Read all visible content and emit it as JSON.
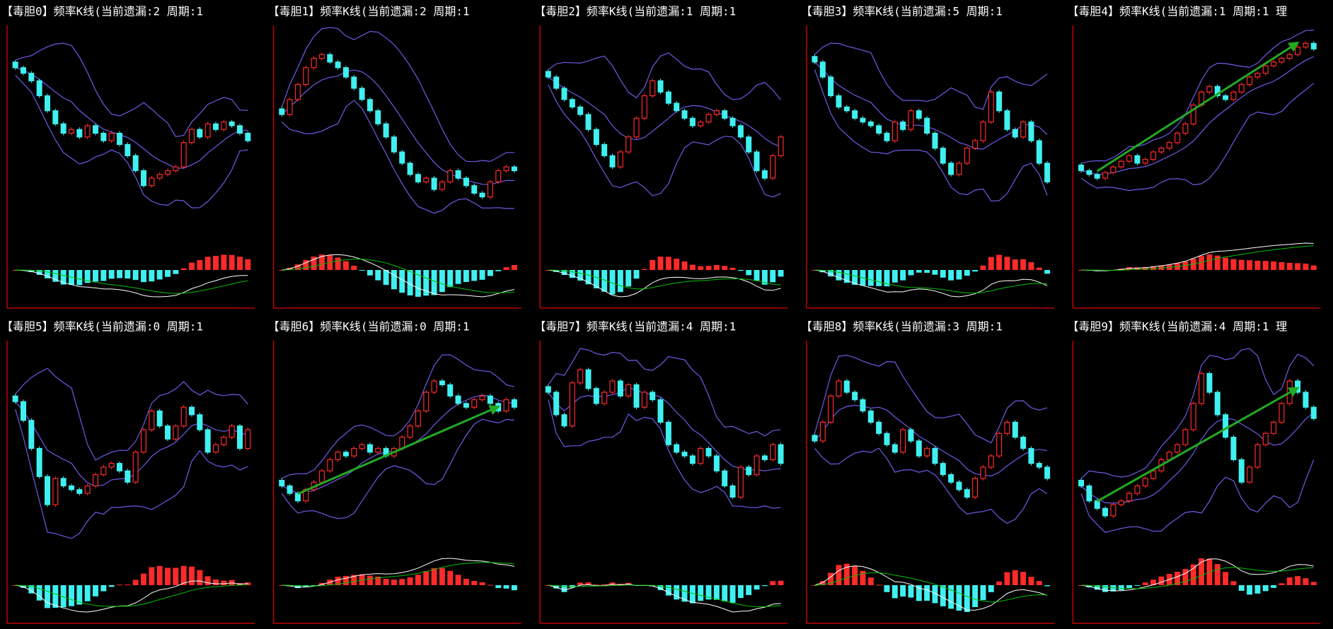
{
  "chart_data": [
    {
      "type": "candlestick",
      "title": "【毒胆0】频率K线(当前遗漏:2 周期:1",
      "trend_arrow": false,
      "values": [
        85,
        82,
        78,
        70,
        62,
        55,
        50,
        52,
        48,
        54,
        50,
        46,
        50,
        44,
        38,
        30,
        22,
        26,
        28,
        30,
        32,
        45,
        52,
        48,
        55,
        52,
        56,
        54,
        50,
        46
      ]
    },
    {
      "type": "candlestick",
      "title": "【毒胆1】频率K线(当前遗漏:2 周期:1",
      "trend_arrow": false,
      "values": [
        60,
        68,
        76,
        85,
        90,
        92,
        88,
        85,
        80,
        74,
        68,
        62,
        55,
        48,
        40,
        34,
        28,
        24,
        26,
        20,
        24,
        30,
        26,
        22,
        18,
        16,
        24,
        30,
        32,
        30
      ]
    },
    {
      "type": "candlestick",
      "title": "【毒胆2】频率K线(当前遗漏:1 周期:1",
      "trend_arrow": false,
      "values": [
        80,
        74,
        68,
        64,
        60,
        52,
        44,
        38,
        32,
        40,
        48,
        58,
        70,
        78,
        72,
        66,
        62,
        58,
        54,
        56,
        60,
        62,
        58,
        54,
        48,
        40,
        30,
        26,
        38,
        48
      ]
    },
    {
      "type": "candlestick",
      "title": "【毒胆3】频率K线(当前遗漏:5 周期:1",
      "trend_arrow": false,
      "values": [
        88,
        80,
        70,
        64,
        62,
        58,
        56,
        54,
        50,
        46,
        56,
        52,
        62,
        58,
        50,
        42,
        34,
        28,
        34,
        42,
        46,
        56,
        72,
        62,
        52,
        48,
        56,
        46,
        34,
        24
      ]
    },
    {
      "type": "candlestick",
      "title": "【毒胆4】频率K线(当前遗漏:1 周期:1 理",
      "trend_arrow": true,
      "values": [
        30,
        28,
        26,
        29,
        32,
        35,
        38,
        34,
        36,
        40,
        42,
        45,
        50,
        55,
        65,
        72,
        75,
        70,
        68,
        72,
        76,
        80,
        82,
        86,
        88,
        90,
        92,
        96,
        98,
        95
      ]
    },
    {
      "type": "candlestick",
      "title": "【毒胆5】频率K线(当前遗漏:0 周期:1",
      "trend_arrow": false,
      "values": [
        75,
        65,
        50,
        35,
        20,
        34,
        30,
        28,
        26,
        30,
        36,
        40,
        42,
        38,
        32,
        48,
        60,
        70,
        62,
        55,
        62,
        72,
        68,
        60,
        48,
        52,
        56,
        62,
        50,
        60
      ]
    },
    {
      "type": "candlestick",
      "title": "【毒胆6】频率K线(当前遗漏:0 周期:1",
      "trend_arrow": true,
      "values": [
        30,
        26,
        22,
        28,
        32,
        38,
        44,
        48,
        46,
        50,
        52,
        48,
        50,
        46,
        50,
        56,
        62,
        70,
        80,
        86,
        84,
        78,
        74,
        72,
        76,
        78,
        74,
        70,
        76,
        72
      ]
    },
    {
      "type": "candlestick",
      "title": "【毒胆7】频率K线(当前遗漏:4 周期:1",
      "trend_arrow": false,
      "values": [
        80,
        68,
        62,
        85,
        92,
        82,
        74,
        80,
        86,
        78,
        84,
        72,
        80,
        76,
        64,
        52,
        48,
        46,
        42,
        50,
        46,
        38,
        30,
        24,
        40,
        36,
        46,
        44,
        52,
        42
      ]
    },
    {
      "type": "candlestick",
      "title": "【毒胆8】频率K线(当前遗漏:3 周期:1",
      "trend_arrow": false,
      "values": [
        54,
        64,
        78,
        86,
        80,
        76,
        70,
        64,
        58,
        52,
        48,
        60,
        54,
        46,
        50,
        42,
        36,
        32,
        28,
        24,
        34,
        40,
        46,
        58,
        64,
        56,
        50,
        42,
        40,
        34
      ]
    },
    {
      "type": "candlestick",
      "title": "【毒胆9】频率K线(当前遗漏:4 周期:1 理",
      "trend_arrow": true,
      "values": [
        30,
        22,
        18,
        14,
        20,
        22,
        26,
        30,
        34,
        38,
        44,
        48,
        52,
        60,
        74,
        90,
        80,
        68,
        56,
        44,
        32,
        40,
        52,
        58,
        64,
        74,
        86,
        80,
        72,
        66
      ]
    }
  ]
}
